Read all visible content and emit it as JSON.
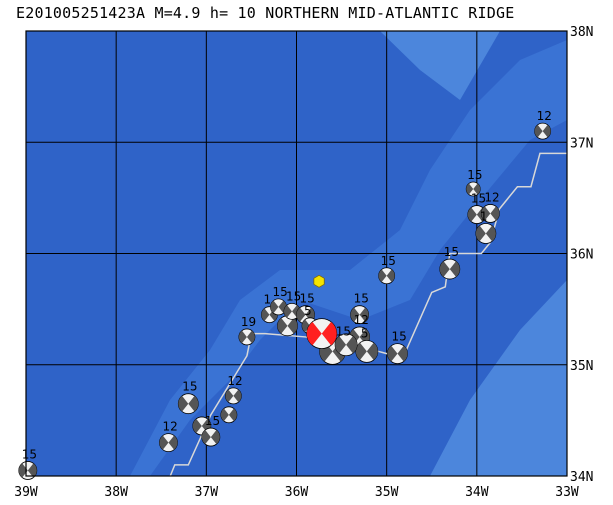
{
  "title": "E201005251423A M=4.9 h= 10 NORTHERN MID-ATLANTIC RIDGE",
  "longitude_labels": [
    "39W",
    "38W",
    "37W",
    "36W",
    "35W",
    "34W",
    "33W"
  ],
  "latitude_labels": [
    "38N",
    "37N",
    "36N",
    "35N",
    "34N"
  ],
  "extent": {
    "lon_min": -39,
    "lon_max": -33,
    "lat_min": 34,
    "lat_max": 38
  },
  "colors": {
    "ocean_deep": "#2f63c8",
    "ocean_mid": "#3a73d4",
    "ocean_shallow": "#4c86dc",
    "grid": "#000000",
    "plate_boundary": "#d8d8d8",
    "mechanism_dark": "#555555",
    "mechanism_light": "#f2f2f2",
    "main_event": "#ff2020",
    "epicenter_marker": "#f5e400"
  },
  "epicenter": {
    "lon": -35.75,
    "lat": 35.75
  },
  "main_event": {
    "lon": -35.72,
    "lat": 35.28,
    "depth_label": "15"
  },
  "mechanisms": [
    {
      "lon": -38.98,
      "lat": 34.05,
      "label": "15",
      "size": 9
    },
    {
      "lon": -37.42,
      "lat": 34.3,
      "label": "12",
      "size": 9
    },
    {
      "lon": -37.2,
      "lat": 34.65,
      "label": "15",
      "size": 10
    },
    {
      "lon": -37.05,
      "lat": 34.45,
      "label": "",
      "size": 9
    },
    {
      "lon": -36.95,
      "lat": 34.35,
      "label": "15",
      "size": 9
    },
    {
      "lon": -36.75,
      "lat": 34.55,
      "label": "",
      "size": 8
    },
    {
      "lon": -36.7,
      "lat": 34.72,
      "label": "12",
      "size": 8
    },
    {
      "lon": -36.55,
      "lat": 35.25,
      "label": "19",
      "size": 8
    },
    {
      "lon": -36.3,
      "lat": 35.45,
      "label": "1",
      "size": 8
    },
    {
      "lon": -36.2,
      "lat": 35.52,
      "label": "15",
      "size": 8
    },
    {
      "lon": -36.1,
      "lat": 35.35,
      "label": "",
      "size": 10
    },
    {
      "lon": -36.05,
      "lat": 35.48,
      "label": "15",
      "size": 8
    },
    {
      "lon": -35.9,
      "lat": 35.45,
      "label": "15",
      "size": 9
    },
    {
      "lon": -35.85,
      "lat": 35.35,
      "label": "5",
      "size": 8
    },
    {
      "lon": -35.6,
      "lat": 35.12,
      "label": "5",
      "size": 13
    },
    {
      "lon": -35.3,
      "lat": 35.45,
      "label": "15",
      "size": 9
    },
    {
      "lon": -35.3,
      "lat": 35.25,
      "label": "12",
      "size": 10
    },
    {
      "lon": -35.22,
      "lat": 35.12,
      "label": "5",
      "size": 11
    },
    {
      "lon": -35.45,
      "lat": 35.18,
      "label": "",
      "size": 11
    },
    {
      "lon": -35.0,
      "lat": 35.8,
      "label": "15",
      "size": 8
    },
    {
      "lon": -34.88,
      "lat": 35.1,
      "label": "15",
      "size": 10
    },
    {
      "lon": -34.3,
      "lat": 35.86,
      "label": "15",
      "size": 10
    },
    {
      "lon": -34.04,
      "lat": 36.58,
      "label": "15",
      "size": 7
    },
    {
      "lon": -34.0,
      "lat": 36.35,
      "label": "15",
      "size": 9
    },
    {
      "lon": -33.85,
      "lat": 36.36,
      "label": "12",
      "size": 9
    },
    {
      "lon": -33.9,
      "lat": 36.18,
      "label": "1",
      "size": 10
    },
    {
      "lon": -33.27,
      "lat": 37.1,
      "label": "12",
      "size": 8
    }
  ]
}
